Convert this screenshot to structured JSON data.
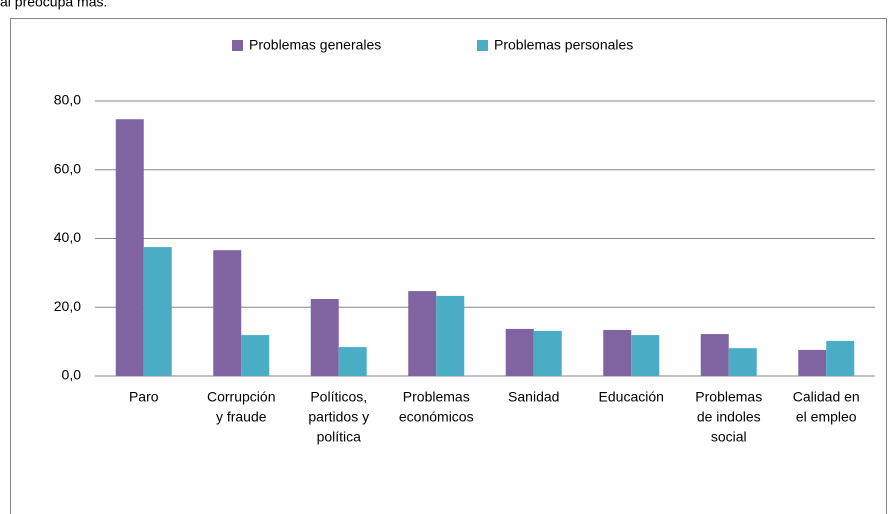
{
  "caption": "al preocupa más.",
  "chart_data": {
    "type": "bar",
    "categories": [
      [
        "Paro"
      ],
      [
        "Corrupción",
        "y fraude"
      ],
      [
        "Políticos,",
        "partidos y",
        "política"
      ],
      [
        "Problemas",
        "económicos"
      ],
      [
        "Sanidad"
      ],
      [
        "Educación"
      ],
      [
        "Problemas",
        "de indoles",
        "social"
      ],
      [
        "Calidad en",
        "el empleo"
      ]
    ],
    "series": [
      {
        "name": "Problemas generales",
        "color": "#8064a2",
        "values": [
          74.7,
          36.6,
          22.4,
          24.7,
          13.7,
          13.4,
          12.2,
          7.6
        ]
      },
      {
        "name": "Problemas personales",
        "color": "#4bacc6",
        "values": [
          37.5,
          11.9,
          8.4,
          23.3,
          13.1,
          11.9,
          8.1,
          10.2
        ]
      }
    ],
    "ylim": [
      0,
      80
    ],
    "yticks": [
      {
        "value": 0,
        "label": "0,0"
      },
      {
        "value": 20,
        "label": "20,0"
      },
      {
        "value": 40,
        "label": "40,0"
      },
      {
        "value": 60,
        "label": "60,0"
      },
      {
        "value": 80,
        "label": "80,0"
      }
    ],
    "grid": true,
    "legend": "top"
  }
}
